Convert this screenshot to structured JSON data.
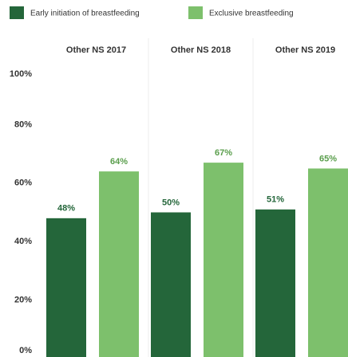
{
  "chart_data": {
    "type": "bar",
    "categories": [
      "Other NS 2017",
      "Other NS 2018",
      "Other NS 2019"
    ],
    "series": [
      {
        "name": "Early initiation of breastfeeding",
        "color": "#24663a",
        "values": [
          48,
          50,
          51
        ],
        "value_labels": [
          "48%",
          "50%",
          "51%"
        ]
      },
      {
        "name": "Exclusive breastfeeding",
        "color": "#7dc06c",
        "values": [
          64,
          67,
          65
        ],
        "value_labels": [
          "64%",
          "67%",
          "65%"
        ]
      }
    ],
    "ylim": [
      0,
      100
    ],
    "yticks": [
      {
        "value": 0,
        "label": "0%"
      },
      {
        "value": 20,
        "label": "20%"
      },
      {
        "value": 40,
        "label": "40%"
      },
      {
        "value": 60,
        "label": "60%"
      },
      {
        "value": 80,
        "label": "80%"
      },
      {
        "value": 100,
        "label": "100%"
      }
    ],
    "legend": "top-left"
  }
}
